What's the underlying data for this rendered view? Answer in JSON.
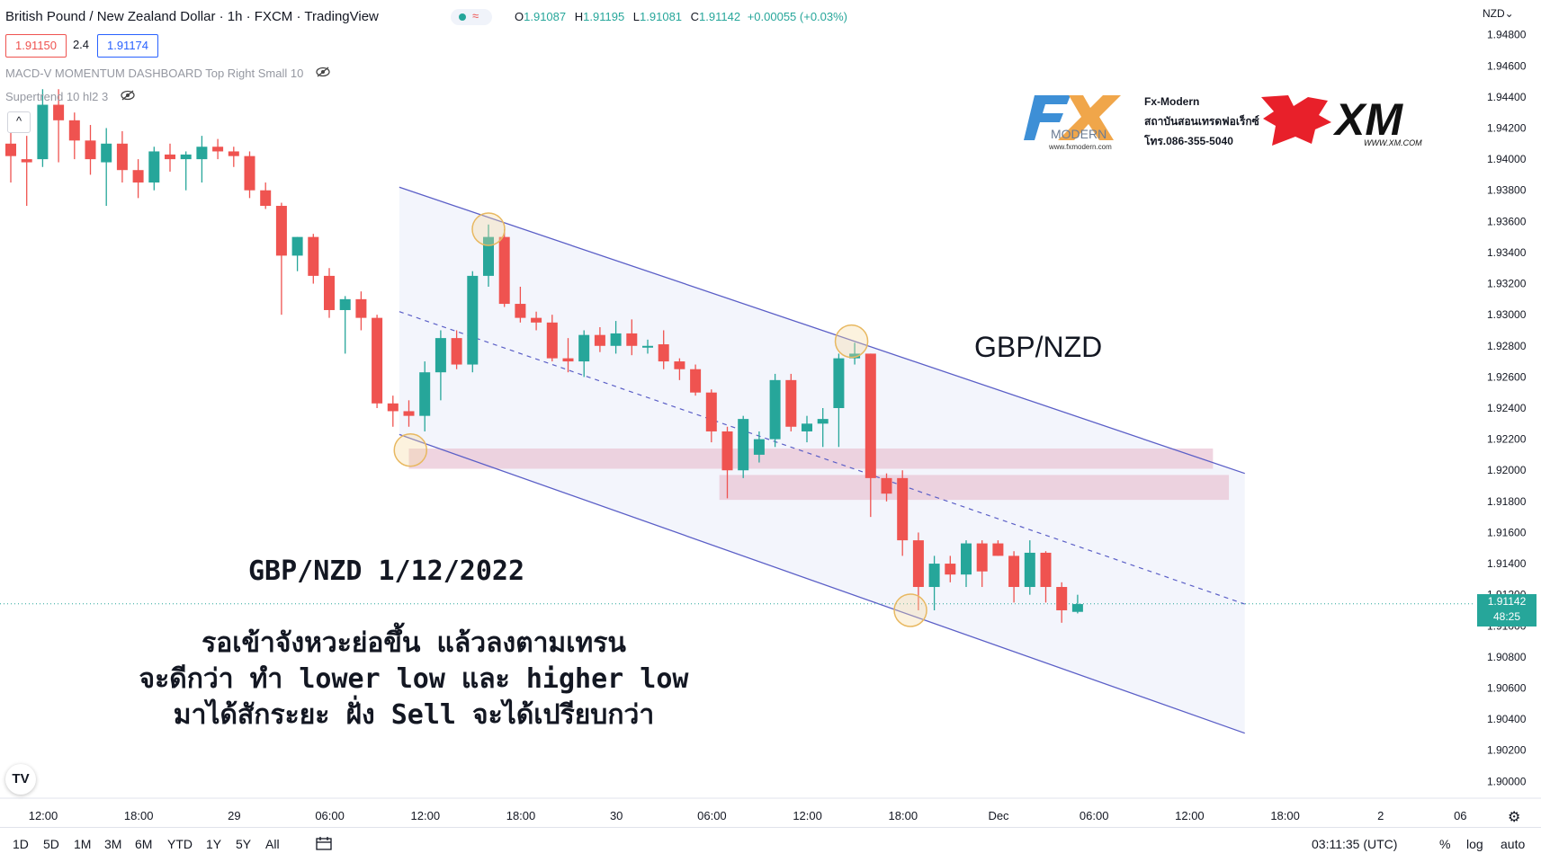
{
  "header": {
    "title": "British Pound / New Zealand Dollar · 1h · FXCM · TradingView",
    "ohlc": {
      "o_label": "O",
      "o": "1.91087",
      "h_label": "H",
      "h": "1.91195",
      "l_label": "L",
      "l": "1.91081",
      "c_label": "C",
      "c": "1.91142",
      "change": "+0.00055 (+0.03%)"
    },
    "bid": "1.91150",
    "spread": "2.4",
    "ask": "1.91174",
    "status_icon": "≈",
    "collapse_icon": "^",
    "currency": "NZD",
    "currency_chevron": "⌄"
  },
  "indicators": [
    {
      "label": "MACD-V MOMENTUM DASHBOARD Top Right Small 10",
      "icon": "eye-off-icon"
    },
    {
      "label": "Supertrend 10 hl2 3",
      "icon": "eye-off-icon"
    }
  ],
  "branding": {
    "fx_logo_text": "MODERN",
    "fx_logo_url": "www.fxmodern.com",
    "fx_name": "Fx-Modern",
    "fx_line2": "สถาบันสอนเทรดฟอเร็กซ์",
    "fx_phone": "โทร.086-355-5040",
    "xm_text": "XM",
    "xm_url": "WWW.XM.COM"
  },
  "annotations": {
    "pair": "GBP/NZD",
    "date_title": "GBP/NZD 1/12/2022",
    "thai_lines": [
      "รอเข้าจังหวะย่อขึ้น แล้วลงตามเทรน",
      "จะดีกว่า ทำ lower low และ higher low",
      "มาได้สักระยะ ฝั่ง Sell จะได้เปรียบกว่า"
    ]
  },
  "price_label": {
    "price": "1.91142",
    "countdown": "48:25"
  },
  "bottom_bar": {
    "ranges": [
      "1D",
      "5D",
      "1M",
      "3M",
      "6M",
      "YTD",
      "1Y",
      "5Y",
      "All"
    ],
    "time": "03:11:35 (UTC)",
    "percent": "%",
    "log": "log",
    "auto": "auto"
  },
  "colors": {
    "up": "#26a69a",
    "down": "#ef5350",
    "channel": "#5b5fc7",
    "zone": "#e9c6d5",
    "highlight": "#f6d9a0"
  },
  "chart_data": {
    "type": "candlestick",
    "symbol": "GBP/NZD",
    "interval": "1h",
    "ylim": [
      1.8995,
      1.9485
    ],
    "y_ticks": [
      "1.90000",
      "1.90200",
      "1.90400",
      "1.90600",
      "1.90800",
      "1.91000",
      "1.91200",
      "1.91400",
      "1.91600",
      "1.91800",
      "1.92000",
      "1.92200",
      "1.92400",
      "1.92600",
      "1.92800",
      "1.93000",
      "1.93200",
      "1.93400",
      "1.93600",
      "1.93800",
      "1.94000",
      "1.94200",
      "1.94400",
      "1.94600",
      "1.94800"
    ],
    "x_ticks": [
      {
        "label": "12:00",
        "i": 0
      },
      {
        "label": "18:00",
        "i": 6
      },
      {
        "label": "29",
        "i": 12
      },
      {
        "label": "06:00",
        "i": 18
      },
      {
        "label": "12:00",
        "i": 24
      },
      {
        "label": "18:00",
        "i": 30
      },
      {
        "label": "30",
        "i": 36
      },
      {
        "label": "06:00",
        "i": 42
      },
      {
        "label": "12:00",
        "i": 48
      },
      {
        "label": "18:00",
        "i": 54
      },
      {
        "label": "Dec",
        "i": 60
      },
      {
        "label": "06:00",
        "i": 66
      },
      {
        "label": "12:00",
        "i": 72
      },
      {
        "label": "18:00",
        "i": 78
      },
      {
        "label": "2",
        "i": 84
      },
      {
        "label": "06",
        "i": 89
      }
    ],
    "candles": [
      {
        "o": 1.941,
        "h": 1.9425,
        "l": 1.9385,
        "c": 1.9402
      },
      {
        "o": 1.94,
        "h": 1.9415,
        "l": 1.937,
        "c": 1.9398
      },
      {
        "o": 1.94,
        "h": 1.9445,
        "l": 1.9395,
        "c": 1.9435
      },
      {
        "o": 1.9435,
        "h": 1.9445,
        "l": 1.9398,
        "c": 1.9425
      },
      {
        "o": 1.9425,
        "h": 1.943,
        "l": 1.94,
        "c": 1.9412
      },
      {
        "o": 1.9412,
        "h": 1.9422,
        "l": 1.939,
        "c": 1.94
      },
      {
        "o": 1.9398,
        "h": 1.942,
        "l": 1.937,
        "c": 1.941
      },
      {
        "o": 1.941,
        "h": 1.9418,
        "l": 1.9385,
        "c": 1.9393
      },
      {
        "o": 1.9393,
        "h": 1.94,
        "l": 1.9375,
        "c": 1.9385
      },
      {
        "o": 1.9385,
        "h": 1.9408,
        "l": 1.938,
        "c": 1.9405
      },
      {
        "o": 1.9403,
        "h": 1.941,
        "l": 1.9392,
        "c": 1.94
      },
      {
        "o": 1.94,
        "h": 1.9405,
        "l": 1.938,
        "c": 1.9403
      },
      {
        "o": 1.94,
        "h": 1.9415,
        "l": 1.9385,
        "c": 1.9408
      },
      {
        "o": 1.9408,
        "h": 1.9413,
        "l": 1.94,
        "c": 1.9405
      },
      {
        "o": 1.9405,
        "h": 1.9408,
        "l": 1.9395,
        "c": 1.9402
      },
      {
        "o": 1.9402,
        "h": 1.9405,
        "l": 1.9375,
        "c": 1.938
      },
      {
        "o": 1.938,
        "h": 1.9385,
        "l": 1.9368,
        "c": 1.937
      },
      {
        "o": 1.937,
        "h": 1.9372,
        "l": 1.93,
        "c": 1.9338
      },
      {
        "o": 1.9338,
        "h": 1.935,
        "l": 1.9328,
        "c": 1.935
      },
      {
        "o": 1.935,
        "h": 1.9352,
        "l": 1.932,
        "c": 1.9325
      },
      {
        "o": 1.9325,
        "h": 1.933,
        "l": 1.9298,
        "c": 1.9303
      },
      {
        "o": 1.9303,
        "h": 1.9312,
        "l": 1.9275,
        "c": 1.931
      },
      {
        "o": 1.931,
        "h": 1.9315,
        "l": 1.929,
        "c": 1.9298
      },
      {
        "o": 1.9298,
        "h": 1.93,
        "l": 1.924,
        "c": 1.9243
      },
      {
        "o": 1.9243,
        "h": 1.9248,
        "l": 1.9228,
        "c": 1.9238
      },
      {
        "o": 1.9238,
        "h": 1.9245,
        "l": 1.9228,
        "c": 1.9235
      },
      {
        "o": 1.9235,
        "h": 1.927,
        "l": 1.9225,
        "c": 1.9263
      },
      {
        "o": 1.9263,
        "h": 1.929,
        "l": 1.9245,
        "c": 1.9285
      },
      {
        "o": 1.9285,
        "h": 1.929,
        "l": 1.9265,
        "c": 1.9268
      },
      {
        "o": 1.9268,
        "h": 1.9328,
        "l": 1.9263,
        "c": 1.9325
      },
      {
        "o": 1.9325,
        "h": 1.9358,
        "l": 1.9318,
        "c": 1.935
      },
      {
        "o": 1.935,
        "h": 1.9355,
        "l": 1.9305,
        "c": 1.9307
      },
      {
        "o": 1.9307,
        "h": 1.9318,
        "l": 1.9295,
        "c": 1.9298
      },
      {
        "o": 1.9298,
        "h": 1.9302,
        "l": 1.929,
        "c": 1.9295
      },
      {
        "o": 1.9295,
        "h": 1.93,
        "l": 1.927,
        "c": 1.9272
      },
      {
        "o": 1.9272,
        "h": 1.9285,
        "l": 1.9263,
        "c": 1.927
      },
      {
        "o": 1.927,
        "h": 1.929,
        "l": 1.926,
        "c": 1.9287
      },
      {
        "o": 1.9287,
        "h": 1.9292,
        "l": 1.9276,
        "c": 1.928
      },
      {
        "o": 1.928,
        "h": 1.9296,
        "l": 1.9275,
        "c": 1.9288
      },
      {
        "o": 1.9288,
        "h": 1.9297,
        "l": 1.9274,
        "c": 1.928
      },
      {
        "o": 1.928,
        "h": 1.9284,
        "l": 1.9275,
        "c": 1.928
      },
      {
        "o": 1.9281,
        "h": 1.929,
        "l": 1.9265,
        "c": 1.927
      },
      {
        "o": 1.927,
        "h": 1.9272,
        "l": 1.9258,
        "c": 1.9265
      },
      {
        "o": 1.9265,
        "h": 1.9268,
        "l": 1.9248,
        "c": 1.925
      },
      {
        "o": 1.925,
        "h": 1.9252,
        "l": 1.9218,
        "c": 1.9225
      },
      {
        "o": 1.9225,
        "h": 1.9228,
        "l": 1.9182,
        "c": 1.92
      },
      {
        "o": 1.92,
        "h": 1.9235,
        "l": 1.9195,
        "c": 1.9233
      },
      {
        "o": 1.921,
        "h": 1.9225,
        "l": 1.9205,
        "c": 1.922
      },
      {
        "o": 1.922,
        "h": 1.9262,
        "l": 1.9215,
        "c": 1.9258
      },
      {
        "o": 1.9258,
        "h": 1.9262,
        "l": 1.9225,
        "c": 1.9228
      },
      {
        "o": 1.9225,
        "h": 1.9235,
        "l": 1.9218,
        "c": 1.923
      },
      {
        "o": 1.923,
        "h": 1.924,
        "l": 1.9215,
        "c": 1.9233
      },
      {
        "o": 1.924,
        "h": 1.9275,
        "l": 1.9215,
        "c": 1.9272
      },
      {
        "o": 1.9272,
        "h": 1.9282,
        "l": 1.9268,
        "c": 1.9275
      },
      {
        "o": 1.9275,
        "h": 1.9275,
        "l": 1.917,
        "c": 1.9195
      },
      {
        "o": 1.9195,
        "h": 1.9198,
        "l": 1.918,
        "c": 1.9185
      },
      {
        "o": 1.9195,
        "h": 1.92,
        "l": 1.9145,
        "c": 1.9155
      },
      {
        "o": 1.9155,
        "h": 1.916,
        "l": 1.911,
        "c": 1.9125
      },
      {
        "o": 1.9125,
        "h": 1.9145,
        "l": 1.911,
        "c": 1.914
      },
      {
        "o": 1.914,
        "h": 1.9145,
        "l": 1.9128,
        "c": 1.9133
      },
      {
        "o": 1.9133,
        "h": 1.9155,
        "l": 1.9125,
        "c": 1.9153
      },
      {
        "o": 1.9153,
        "h": 1.9155,
        "l": 1.9125,
        "c": 1.9135
      },
      {
        "o": 1.9153,
        "h": 1.9155,
        "l": 1.9145,
        "c": 1.9145
      },
      {
        "o": 1.9145,
        "h": 1.9148,
        "l": 1.9115,
        "c": 1.9125
      },
      {
        "o": 1.9125,
        "h": 1.9155,
        "l": 1.912,
        "c": 1.9147
      },
      {
        "o": 1.9147,
        "h": 1.9148,
        "l": 1.9115,
        "c": 1.9125
      },
      {
        "o": 1.9125,
        "h": 1.9128,
        "l": 1.9102,
        "c": 1.911
      },
      {
        "o": 1.9109,
        "h": 1.912,
        "l": 1.9108,
        "c": 1.9114
      }
    ],
    "channel": {
      "upper": [
        {
          "i": 24.4,
          "p": 1.9382
        },
        {
          "i": 77.5,
          "p": 1.9198
        }
      ],
      "lower": [
        {
          "i": 24.4,
          "p": 1.9223
        },
        {
          "i": 77.5,
          "p": 1.9031
        }
      ],
      "mid": [
        {
          "i": 24.4,
          "p": 1.9302
        },
        {
          "i": 77.5,
          "p": 1.9114
        }
      ]
    },
    "zones": [
      {
        "i0": 25.0,
        "i1": 75.5,
        "p0": 1.9214,
        "p1": 1.9201
      },
      {
        "i0": 44.5,
        "i1": 76.5,
        "p0": 1.9197,
        "p1": 1.9181
      }
    ],
    "highlights": [
      {
        "i": 30.0,
        "p": 1.9355
      },
      {
        "i": 52.8,
        "p": 1.9283
      },
      {
        "i": 25.1,
        "p": 1.9213
      },
      {
        "i": 56.5,
        "p": 1.911
      }
    ],
    "last_price": 1.91142,
    "grid": false
  }
}
